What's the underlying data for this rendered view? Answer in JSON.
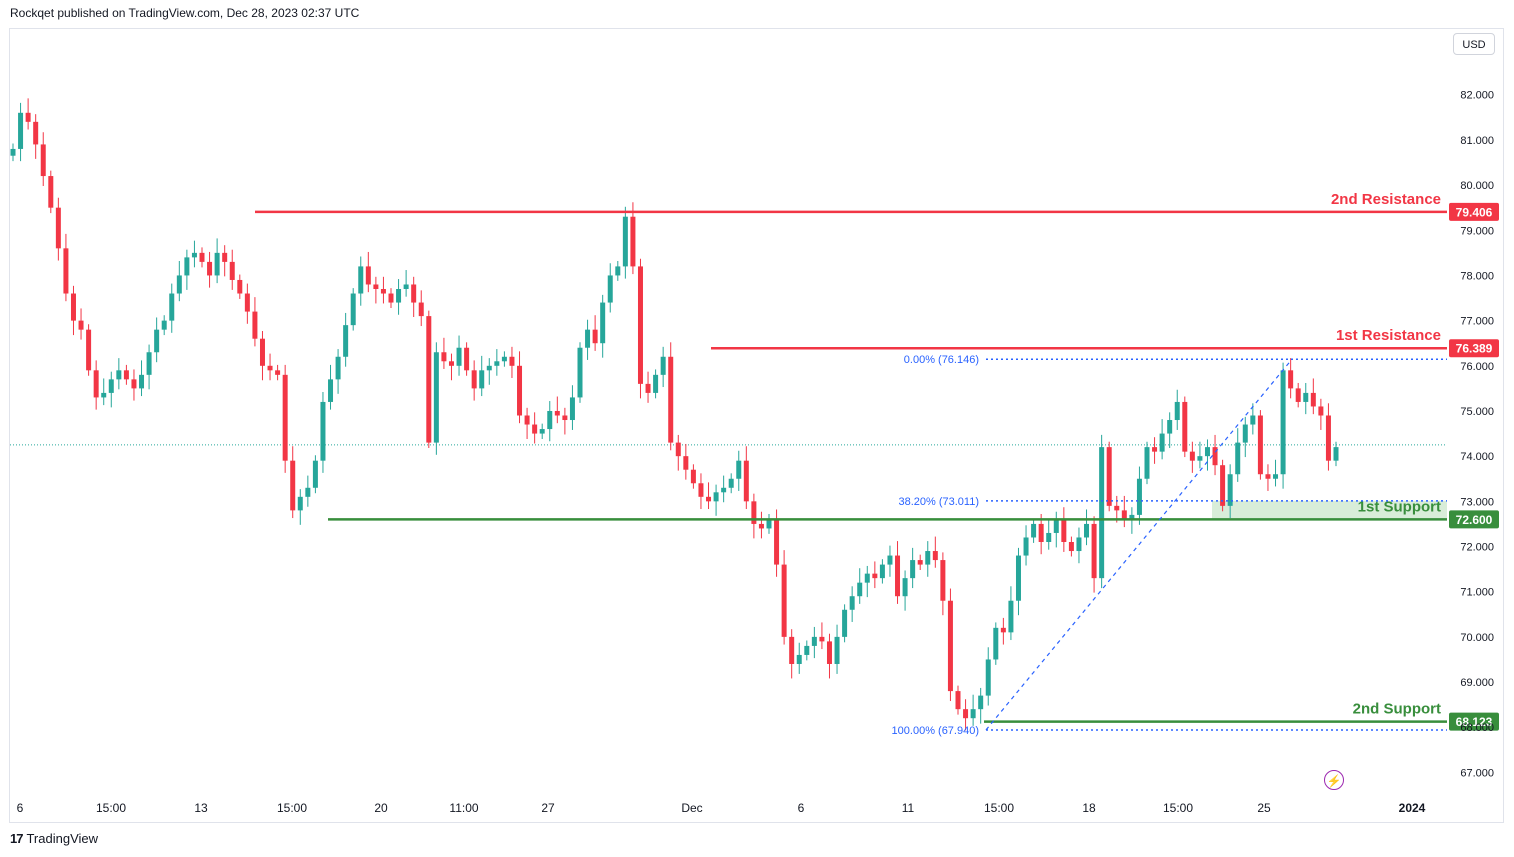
{
  "header": {
    "text": "Rockqet published on TradingView.com, Dec 28, 2023 02:37 UTC"
  },
  "currency_button": "USD",
  "footer": {
    "logo_glyph": "17",
    "brand": "TradingView"
  },
  "colors": {
    "up": "#26a69a",
    "down": "#f23645",
    "resistance": "#f23645",
    "support": "#388e3c",
    "fib": "#2962ff",
    "current_price_line": "#26a69a"
  },
  "chart_data": {
    "type": "candlestick",
    "instrument_currency": "USD",
    "ylim": [
      66.5,
      83.3
    ],
    "y_ticks": [
      "82.000",
      "81.000",
      "80.000",
      "79.000",
      "78.000",
      "77.000",
      "76.000",
      "75.000",
      "74.000",
      "73.000",
      "72.000",
      "71.000",
      "70.000",
      "69.000",
      "68.000",
      "67.000"
    ],
    "x_ticks": [
      "6",
      "15:00",
      "13",
      "15:00",
      "20",
      "11:00",
      "27",
      "Dec",
      "6",
      "11",
      "15:00",
      "18",
      "15:00",
      "25",
      "2024"
    ],
    "current_price": 74.25,
    "levels": [
      {
        "label": "2nd Resistance",
        "value": 79.406,
        "price_label": "79.406",
        "kind": "resistance"
      },
      {
        "label": "1st Resistance",
        "value": 76.389,
        "price_label": "76.389",
        "kind": "resistance"
      },
      {
        "label": "1st Support",
        "value": 72.6,
        "price_label": "72.600",
        "kind": "support"
      },
      {
        "label": "2nd Support",
        "value": 68.123,
        "price_label": "68.123",
        "kind": "support"
      }
    ],
    "fibonacci": [
      {
        "label": "0.00% (76.146)",
        "value": 76.146
      },
      {
        "label": "38.20% (73.011)",
        "value": 73.011
      },
      {
        "label": "100.00% (67.940)",
        "value": 67.94
      }
    ],
    "support_zone": {
      "from": 72.6,
      "to": 73.011
    },
    "close_path": [
      80.8,
      81.6,
      81.4,
      80.9,
      80.2,
      79.5,
      78.6,
      77.6,
      77.0,
      76.8,
      75.9,
      75.3,
      75.4,
      75.7,
      75.9,
      75.7,
      75.5,
      75.8,
      76.3,
      76.8,
      77.0,
      77.6,
      78.0,
      78.4,
      78.5,
      78.3,
      78.0,
      78.5,
      78.3,
      77.9,
      77.6,
      77.2,
      76.6,
      76.0,
      75.9,
      75.8,
      73.9,
      72.8,
      73.1,
      73.3,
      73.9,
      75.2,
      75.7,
      76.2,
      76.9,
      77.6,
      78.2,
      77.8,
      77.7,
      77.6,
      77.4,
      77.7,
      77.8,
      77.4,
      77.1,
      74.3,
      76.3,
      76.1,
      76.0,
      76.4,
      75.9,
      75.5,
      75.9,
      76.0,
      76.1,
      76.2,
      76.0,
      74.9,
      74.7,
      74.5,
      74.6,
      75.0,
      74.9,
      74.8,
      75.3,
      76.4,
      76.8,
      76.5,
      77.4,
      78.0,
      78.2,
      79.3,
      78.2,
      75.6,
      75.4,
      75.8,
      76.2,
      74.3,
      74.0,
      73.7,
      73.4,
      73.1,
      73.0,
      73.2,
      73.3,
      73.5,
      73.9,
      73.0,
      72.5,
      72.4,
      72.6,
      71.6,
      70.0,
      69.4,
      69.6,
      69.8,
      70.0,
      69.9,
      69.4,
      70.0,
      70.6,
      70.9,
      71.2,
      71.4,
      71.3,
      71.6,
      71.8,
      70.9,
      71.3,
      71.7,
      71.6,
      71.9,
      71.7,
      70.8,
      68.8,
      68.4,
      68.2,
      68.4,
      68.7,
      69.5,
      70.2,
      70.1,
      70.8,
      71.8,
      72.2,
      72.5,
      72.1,
      72.3,
      72.6,
      72.1,
      71.9,
      72.2,
      72.5,
      71.3,
      74.2,
      72.9,
      72.8,
      72.6,
      72.7,
      73.5,
      74.2,
      74.1,
      74.5,
      74.8,
      75.2,
      74.1,
      73.9,
      74.0,
      74.2,
      73.8,
      72.9,
      73.6,
      74.3,
      74.7,
      74.9,
      73.6,
      73.5,
      73.6,
      75.9,
      75.5,
      75.2,
      75.4,
      75.1,
      74.9,
      73.9,
      74.2
    ]
  },
  "tooltip_glyph": "⚡"
}
